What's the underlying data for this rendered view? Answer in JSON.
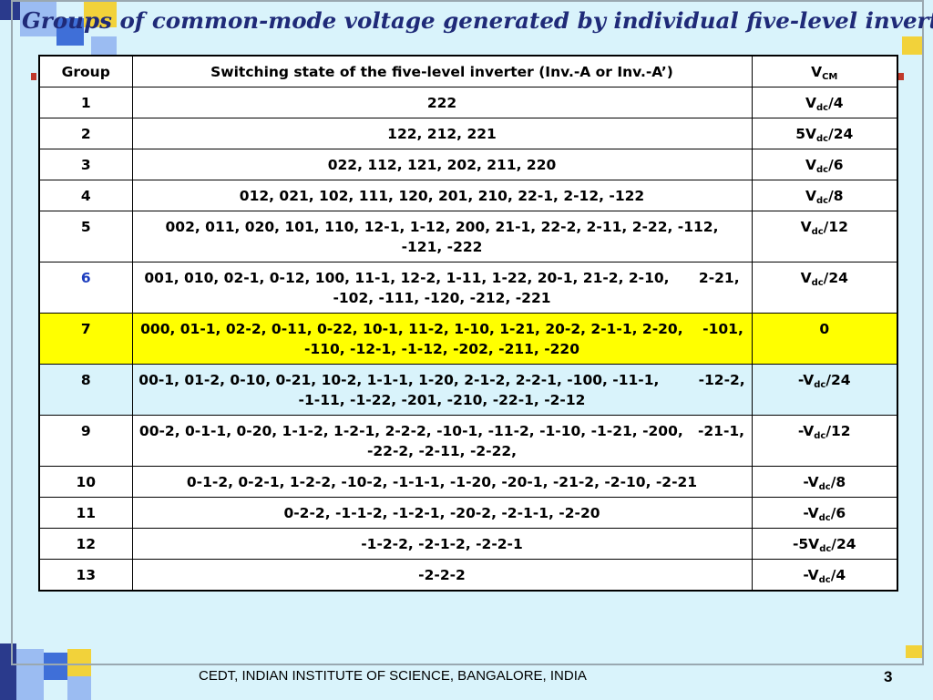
{
  "title": "Groups of common-mode voltage generated by individual five-level inverter",
  "table": {
    "headers": {
      "group": "Group",
      "state": "Switching state of the five-level inverter (Inv.-A or Inv.-A’)",
      "vcm_main": "V",
      "vcm_sub": "CM"
    },
    "rows": [
      {
        "group": "1",
        "state": "222",
        "vcm_pre": "V",
        "vcm_sub": "dc",
        "vcm_post": "/4"
      },
      {
        "group": "2",
        "state": "122, 212, 221",
        "vcm_pre": "5V",
        "vcm_sub": "dc",
        "vcm_post": "/24"
      },
      {
        "group": "3",
        "state": "022, 112, 121, 202, 211, 220",
        "vcm_pre": "V",
        "vcm_sub": "dc",
        "vcm_post": "/6"
      },
      {
        "group": "4",
        "state": "012, 021, 102, 111, 120, 201, 210, 22-1, 2-12, -122",
        "vcm_pre": "V",
        "vcm_sub": "dc",
        "vcm_post": "/8"
      },
      {
        "group": "5",
        "state": "002, 011, 020, 101, 110, 12-1, 1-12, 200, 21-1, 22-2, 2-11, 2-22, -112,   -121, -222",
        "vcm_pre": "V",
        "vcm_sub": "dc",
        "vcm_post": "/12"
      },
      {
        "group": "6",
        "state": "001, 010, 02-1, 0-12, 100, 11-1, 12-2, 1-11, 1-22, 20-1, 21-2, 2-10,      2-21, -102, -111, -120, -212, -221",
        "vcm_pre": "V",
        "vcm_sub": "dc",
        "vcm_post": "/24"
      },
      {
        "group": "7",
        "state": "000, 01-1, 02-2, 0-11, 0-22, 10-1, 11-2, 1-10, 1-21, 20-2, 2-1-1, 2-20,    -101, -110, -12-1, -1-12, -202, -211, -220",
        "vcm_pre": "0",
        "vcm_sub": "",
        "vcm_post": ""
      },
      {
        "group": "8",
        "state": "00-1, 01-2, 0-10, 0-21, 10-2, 1-1-1, 1-20, 2-1-2, 2-2-1, -100, -11-1,        -12-2, -1-11, -1-22, -201, -210, -22-1, -2-12",
        "vcm_pre": "-V",
        "vcm_sub": "dc",
        "vcm_post": "/24"
      },
      {
        "group": "9",
        "state": "00-2, 0-1-1, 0-20, 1-1-2, 1-2-1, 2-2-2, -10-1, -11-2, -1-10, -1-21, -200,   -21-1, -22-2, -2-11, -2-22,",
        "vcm_pre": "-V",
        "vcm_sub": "dc",
        "vcm_post": "/12"
      },
      {
        "group": "10",
        "state": "0-1-2, 0-2-1, 1-2-2, -10-2, -1-1-1, -1-20, -20-1, -21-2, -2-10, -2-21",
        "vcm_pre": "-V",
        "vcm_sub": "dc",
        "vcm_post": "/8"
      },
      {
        "group": "11",
        "state": "0-2-2, -1-1-2, -1-2-1, -20-2, -2-1-1, -2-20",
        "vcm_pre": "-V",
        "vcm_sub": "dc",
        "vcm_post": "/6"
      },
      {
        "group": "12",
        "state": "-1-2-2, -2-1-2, -2-2-1",
        "vcm_pre": "-5V",
        "vcm_sub": "dc",
        "vcm_post": "/24"
      },
      {
        "group": "13",
        "state": "-2-2-2",
        "vcm_pre": "-V",
        "vcm_sub": "dc",
        "vcm_post": "/4"
      }
    ]
  },
  "footer": "CEDT, INDIAN INSTITUTE OF SCIENCE, BANGALORE, INDIA",
  "page_number": "3",
  "colors": {
    "background": "#d9f3fb",
    "title": "#1f2a78",
    "highlight": "#ffff00",
    "group6_text": "#1f3fbf"
  }
}
